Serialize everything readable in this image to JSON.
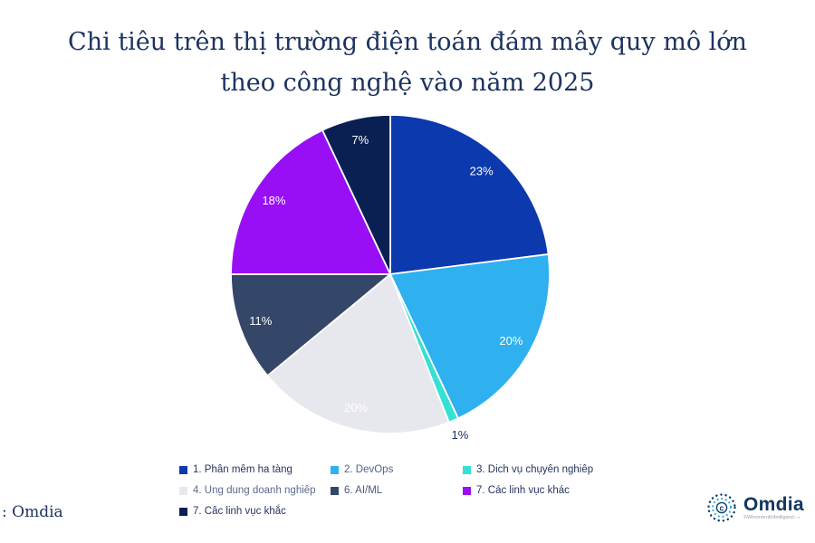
{
  "title": {
    "line1": "Chi tiêu trên thị trường điện toán đám mây quy mô lớn",
    "line2": "theo công nghệ vào năm 2025"
  },
  "source_text": ": Omdia",
  "logo": {
    "name": "Omdia",
    "tagline": "©Whomeruthibolliganci"
  },
  "icons": {
    "green_arrow": "→"
  },
  "colors": {
    "background": "#ffffff",
    "title_text": "#1d3360",
    "slice_separator": "#ffffff"
  },
  "chart_data": {
    "type": "pie",
    "title": "Chi tiêu trên thị trường điện toán đám mây quy mô lớn theo công nghệ vào năm 2025",
    "value_format": "percent",
    "start_angle_deg": 0,
    "direction": "clockwise",
    "legend_position": "bottom",
    "slices": [
      {
        "label": "1. Phân mêm ha tàng",
        "value": 23,
        "color": "#0d39ae",
        "value_label": "23%",
        "value_label_color": "#ffffff",
        "legend_text_color": "#26355e"
      },
      {
        "label": "2. DevOps",
        "value": 20,
        "color": "#2fb0ef",
        "value_label": "20%",
        "value_label_color": "#ffffff",
        "legend_text_color": "#4f638a"
      },
      {
        "label": "3. Dich vụ chụyên nghiêp",
        "value": 1,
        "color": "#35e0d4",
        "value_label": "1%",
        "value_label_color": "#1c2f63",
        "legend_text_color": "#26355e",
        "label_outside": true
      },
      {
        "label": "4. Ung dung doanh nghiêp",
        "value": 20,
        "color": "#e7e7ee",
        "value_label": "20%",
        "value_label_color": "#ffffff",
        "legend_text_color": "#5a6b8c"
      },
      {
        "label": "6. AI/ML",
        "value": 11,
        "color": "#344769",
        "value_label": "11%",
        "value_label_color": "#ffffff",
        "legend_text_color": "#4a5a7d"
      },
      {
        "label": "7. Các linh vục khác",
        "value": 18,
        "color": "#990ff5",
        "value_label": "18%",
        "value_label_color": "#ffffff",
        "legend_text_color": "#26355e"
      },
      {
        "label": "7. Câc linh vục khắc",
        "value": 7,
        "color": "#0a2053",
        "value_label": "7%",
        "value_label_color": "#ffffff",
        "legend_text_color": "#26355e"
      }
    ],
    "legend_rows": [
      [
        0,
        1,
        2
      ],
      [
        3,
        4,
        5
      ],
      [
        6
      ]
    ]
  }
}
